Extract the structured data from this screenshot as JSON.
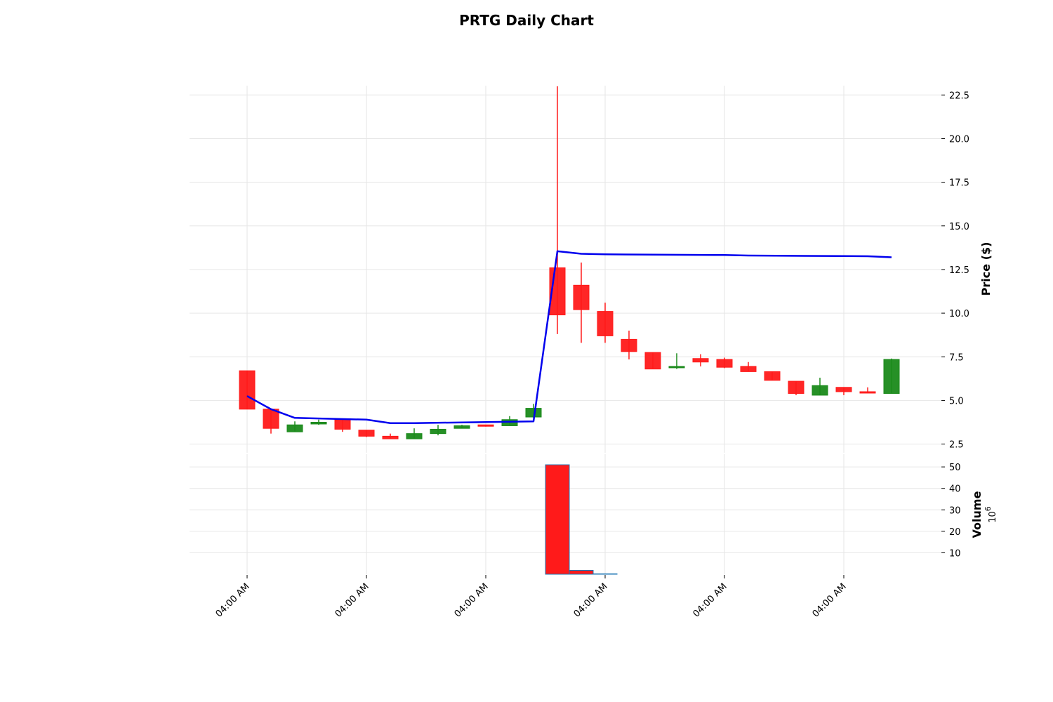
{
  "chart_data": {
    "type": "candlestick",
    "title": "PRTG Daily Chart",
    "price_panel": {
      "ylabel": "Price ($)",
      "ylim": [
        2.0,
        24.0
      ],
      "yticks": [
        2.5,
        5.0,
        7.5,
        10.0,
        12.5,
        15.0,
        17.5,
        20.0,
        22.5
      ],
      "ytick_labels": [
        "2.5",
        "5.0",
        "7.5",
        "10.0",
        "12.5",
        "15.0",
        "17.5",
        "20.0",
        "22.5"
      ],
      "grid": true
    },
    "volume_panel": {
      "ylabel": "Volume",
      "scale_label": "10",
      "scale_exponent": "6",
      "ylim": [
        0,
        52
      ],
      "yticks": [
        10,
        20,
        30,
        40,
        50
      ],
      "ytick_labels": [
        "10",
        "20",
        "30",
        "40",
        "50"
      ],
      "grid": true
    },
    "xtick_labels": [
      "04:00 AM",
      "04:00 AM",
      "04:00 AM",
      "04:00 AM",
      "04:00 AM",
      "04:00 AM"
    ],
    "xtick_positions": [
      0,
      5,
      10,
      15,
      20,
      25
    ],
    "candles": [
      {
        "open": 6.7,
        "high": 6.7,
        "low": 4.5,
        "close": 4.5,
        "volume": 0
      },
      {
        "open": 4.5,
        "high": 4.5,
        "low": 3.1,
        "close": 3.4,
        "volume": 0
      },
      {
        "open": 3.2,
        "high": 3.8,
        "low": 3.2,
        "close": 3.6,
        "volume": 0
      },
      {
        "open": 3.65,
        "high": 3.9,
        "low": 3.6,
        "close": 3.75,
        "volume": 0
      },
      {
        "open": 3.9,
        "high": 3.9,
        "low": 3.2,
        "close": 3.35,
        "volume": 0
      },
      {
        "open": 3.3,
        "high": 3.3,
        "low": 2.9,
        "close": 2.95,
        "volume": 0
      },
      {
        "open": 2.95,
        "high": 3.1,
        "low": 2.8,
        "close": 2.8,
        "volume": 0
      },
      {
        "open": 2.8,
        "high": 3.4,
        "low": 2.8,
        "close": 3.1,
        "volume": 0
      },
      {
        "open": 3.1,
        "high": 3.6,
        "low": 3.0,
        "close": 3.35,
        "volume": 0
      },
      {
        "open": 3.4,
        "high": 3.6,
        "low": 3.4,
        "close": 3.55,
        "volume": 0
      },
      {
        "open": 3.6,
        "high": 3.6,
        "low": 3.5,
        "close": 3.55,
        "volume": 0
      },
      {
        "open": 3.55,
        "high": 4.1,
        "low": 3.55,
        "close": 3.9,
        "volume": 0
      },
      {
        "open": 4.05,
        "high": 4.8,
        "low": 4.0,
        "close": 4.55,
        "volume": 0
      },
      {
        "open": 12.6,
        "high": 23.0,
        "low": 8.8,
        "close": 9.9,
        "volume": 51
      },
      {
        "open": 11.6,
        "high": 12.9,
        "low": 8.3,
        "close": 10.2,
        "volume": 1.8
      },
      {
        "open": 10.1,
        "high": 10.6,
        "low": 8.3,
        "close": 8.7,
        "volume": 0.2
      },
      {
        "open": 8.5,
        "high": 9.0,
        "low": 7.35,
        "close": 7.8,
        "volume": 0
      },
      {
        "open": 7.75,
        "high": 7.75,
        "low": 6.8,
        "close": 6.8,
        "volume": 0
      },
      {
        "open": 6.9,
        "high": 7.7,
        "low": 6.8,
        "close": 6.95,
        "volume": 0
      },
      {
        "open": 7.4,
        "high": 7.65,
        "low": 6.95,
        "close": 7.2,
        "volume": 0
      },
      {
        "open": 7.35,
        "high": 7.45,
        "low": 6.85,
        "close": 6.9,
        "volume": 0
      },
      {
        "open": 6.95,
        "high": 7.2,
        "low": 6.65,
        "close": 6.65,
        "volume": 0
      },
      {
        "open": 6.65,
        "high": 6.65,
        "low": 6.15,
        "close": 6.15,
        "volume": 0
      },
      {
        "open": 6.1,
        "high": 6.1,
        "low": 5.3,
        "close": 5.4,
        "volume": 0
      },
      {
        "open": 5.3,
        "high": 6.3,
        "low": 5.3,
        "close": 5.85,
        "volume": 0
      },
      {
        "open": 5.75,
        "high": 5.75,
        "low": 5.3,
        "close": 5.5,
        "volume": 0
      },
      {
        "open": 5.5,
        "high": 5.75,
        "low": 5.45,
        "close": 5.45,
        "volume": 0
      },
      {
        "open": 5.4,
        "high": 7.4,
        "low": 5.4,
        "close": 7.35,
        "volume": 0
      }
    ],
    "moving_average": {
      "x": [
        0,
        1,
        2,
        5,
        6,
        7,
        12,
        13,
        14,
        15,
        20,
        21,
        25,
        26,
        27
      ],
      "values": [
        5.25,
        4.5,
        4.0,
        3.9,
        3.7,
        3.7,
        3.8,
        13.55,
        13.4,
        13.37,
        13.33,
        13.3,
        13.27,
        13.26,
        13.2
      ]
    },
    "colors": {
      "up": "#1a8a1a",
      "down": "#ff1a1a",
      "ma_line": "#0000ee",
      "grid": "#e6e6e6"
    }
  }
}
